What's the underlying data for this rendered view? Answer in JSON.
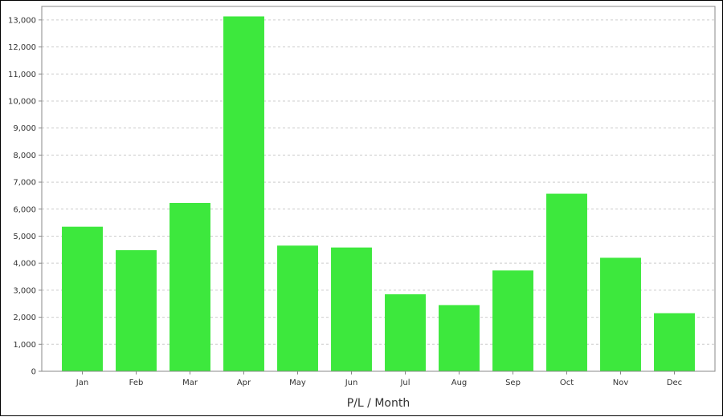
{
  "chart_data": {
    "type": "bar",
    "title": "",
    "xlabel": "P/L / Month",
    "ylabel": "",
    "categories": [
      "Jan",
      "Feb",
      "Mar",
      "Apr",
      "May",
      "Jun",
      "Jul",
      "Aug",
      "Sep",
      "Oct",
      "Nov",
      "Dec"
    ],
    "series": [
      {
        "values": [
          5350,
          4480,
          6230,
          13130,
          4650,
          4580,
          2850,
          2450,
          3730,
          6570,
          4200,
          2150
        ]
      }
    ],
    "ylim": [
      0,
      13500
    ],
    "yticks": [
      0,
      1000,
      2000,
      3000,
      4000,
      5000,
      6000,
      7000,
      8000,
      9000,
      10000,
      11000,
      12000,
      13000
    ],
    "ytick_labels": [
      "0",
      "1,000",
      "2,000",
      "3,000",
      "4,000",
      "5,000",
      "6,000",
      "7,000",
      "8,000",
      "9,000",
      "10,000",
      "11,000",
      "12,000",
      "13,000"
    ],
    "grid": true,
    "legend": "none",
    "colors": {
      "bar": "#3de83d",
      "grid": "#cccccc",
      "axis": "#888888",
      "frame": "#000000"
    }
  }
}
